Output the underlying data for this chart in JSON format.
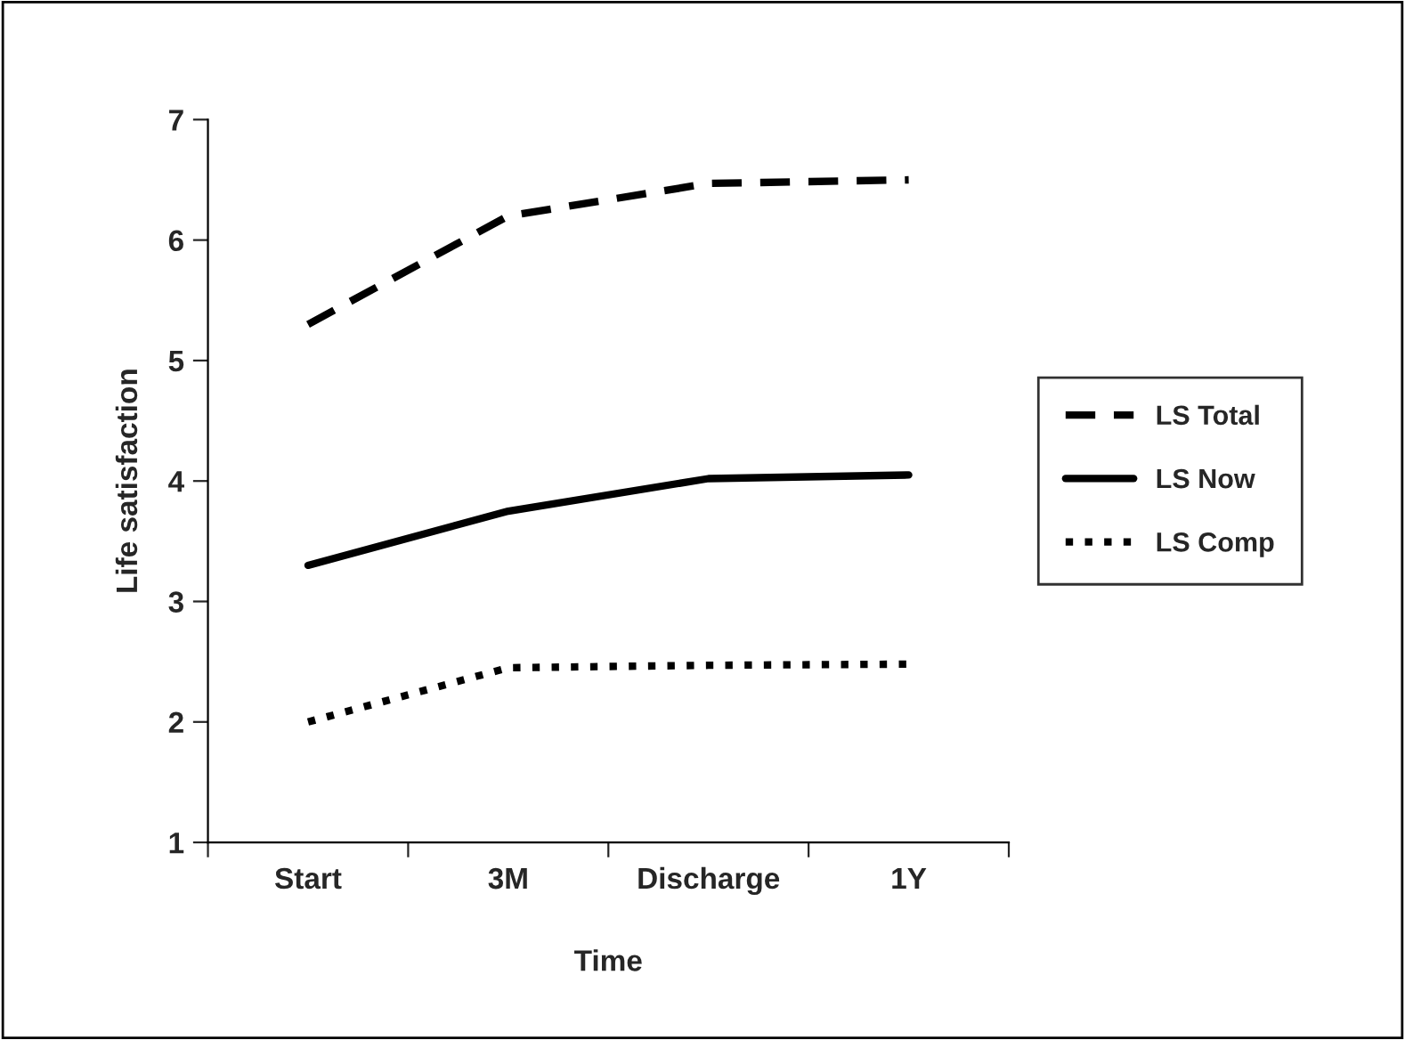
{
  "chart_data": {
    "type": "line",
    "xlabel": "Time",
    "ylabel": "Life satisfaction",
    "categories": [
      "Start",
      "3M",
      "Discharge",
      "1Y"
    ],
    "series": [
      {
        "name": "LS Total",
        "color": "#000000",
        "line_style": "dashed",
        "values": [
          5.3,
          6.2,
          6.47,
          6.5
        ]
      },
      {
        "name": "LS Now",
        "color": "#000000",
        "line_style": "solid",
        "values": [
          3.3,
          3.75,
          4.02,
          4.05
        ]
      },
      {
        "name": "LS Comp",
        "color": "#000000",
        "line_style": "dotted",
        "values": [
          2.0,
          2.45,
          2.47,
          2.48
        ]
      }
    ],
    "ylim": [
      1,
      7
    ],
    "yticks": [
      1,
      2,
      3,
      4,
      5,
      6,
      7
    ],
    "grid": false,
    "legend": "right"
  }
}
